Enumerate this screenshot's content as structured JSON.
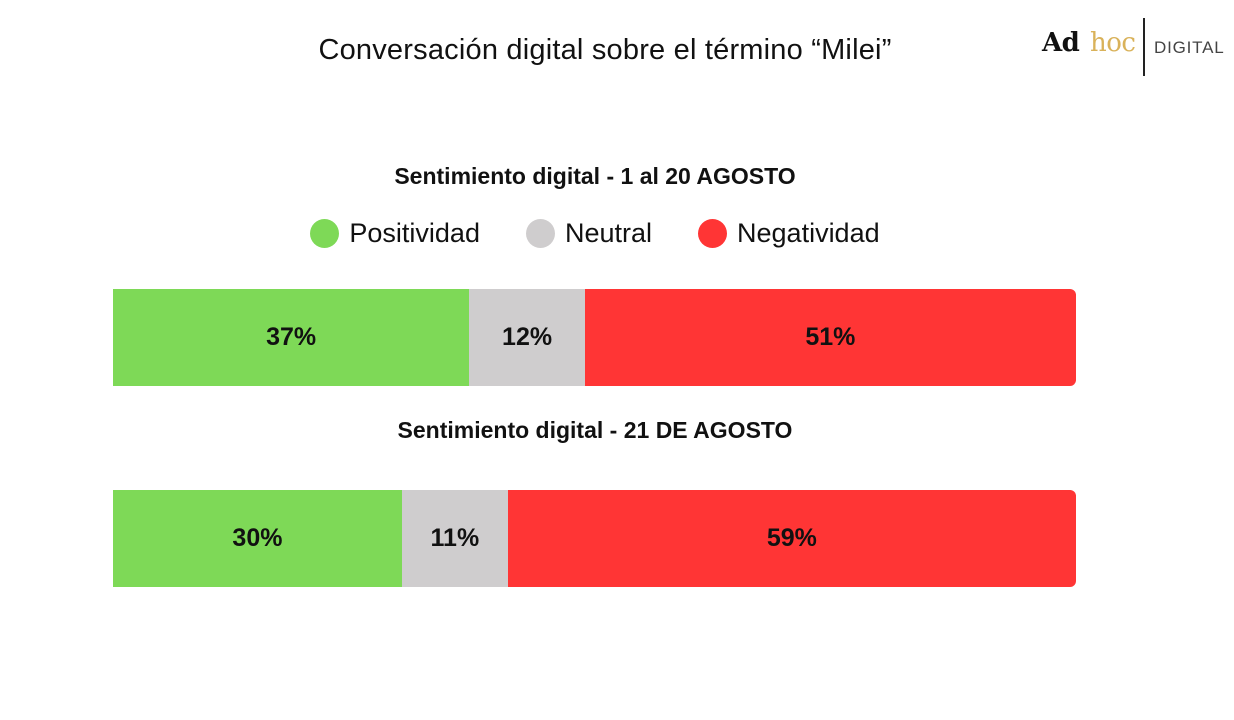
{
  "title": "Conversación digital sobre el término “Milei”",
  "logo": {
    "ad": "Ad",
    "hoc": "hoc",
    "digital": "DIGITAL"
  },
  "colors": {
    "positive": "#7ed957",
    "neutral": "#cfcdce",
    "negative": "#ff3535"
  },
  "legend": [
    {
      "label": "Positividad",
      "color_key": "positive"
    },
    {
      "label": "Neutral",
      "color_key": "neutral"
    },
    {
      "label": "Negatividad",
      "color_key": "negative"
    }
  ],
  "chart_data": [
    {
      "type": "bar",
      "title": "Sentimiento digital - 1 al 20 AGOSTO",
      "categories": [
        "Positividad",
        "Neutral",
        "Negatividad"
      ],
      "values": [
        37,
        12,
        51
      ],
      "labels": [
        "37%",
        "12%",
        "51%"
      ]
    },
    {
      "type": "bar",
      "title": "Sentimiento digital - 21 DE AGOSTO",
      "categories": [
        "Positividad",
        "Neutral",
        "Negatividad"
      ],
      "values": [
        30,
        11,
        59
      ],
      "labels": [
        "30%",
        "11%",
        "59%"
      ]
    }
  ]
}
